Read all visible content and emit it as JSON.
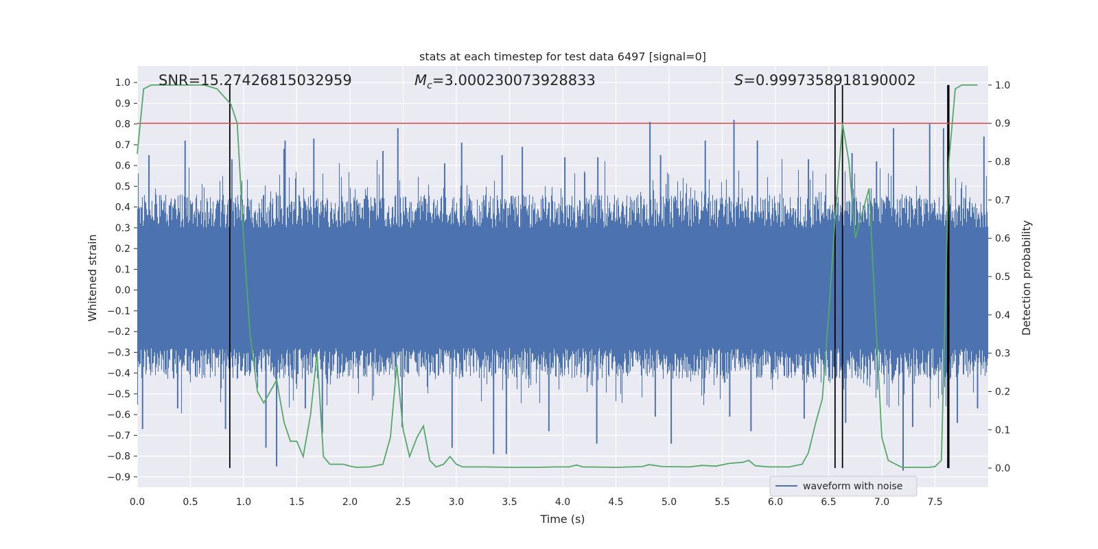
{
  "chart_data": {
    "type": "line",
    "title": "stats at each timestep for test data 6497 [signal=0]",
    "xlabel": "Time (s)",
    "ylabel_left": "Whitened strain",
    "ylabel_right": "Detection probability",
    "xlim": [
      0.0,
      8.0
    ],
    "ylim_left": [
      -0.95,
      1.08
    ],
    "ylim_right": [
      -0.05,
      1.05
    ],
    "x_ticks": [
      "0.0",
      "0.5",
      "1.0",
      "1.5",
      "2.0",
      "2.5",
      "3.0",
      "3.5",
      "4.0",
      "4.5",
      "5.0",
      "5.5",
      "6.0",
      "6.5",
      "7.0",
      "7.5"
    ],
    "y_left_ticks": [
      "-0.9",
      "-0.8",
      "-0.7",
      "-0.6",
      "-0.5",
      "-0.4",
      "-0.3",
      "-0.2",
      "-0.1",
      "0.0",
      "0.1",
      "0.2",
      "0.3",
      "0.4",
      "0.5",
      "0.6",
      "0.7",
      "0.8",
      "0.9",
      "1.0"
    ],
    "y_right_ticks": [
      "0.0",
      "0.1",
      "0.2",
      "0.3",
      "0.4",
      "0.5",
      "0.6",
      "0.7",
      "0.8",
      "0.9",
      "1.0"
    ],
    "annotations": {
      "snr": "SNR=15.27426815032959",
      "mc_symbol": "M",
      "mc_sub": "c",
      "mc_value": "=3.000230073928833",
      "s_symbol": "S",
      "s_value": "=0.9997358918190002"
    },
    "legend": {
      "label": "waveform with noise",
      "placement": "bottom-right"
    },
    "threshold": {
      "axis": "right",
      "value": 0.9
    },
    "detection_vlines": [
      0.87,
      6.56,
      6.63,
      7.62,
      7.63
    ],
    "series": [
      {
        "name": "waveform with noise",
        "axis": "left",
        "style": "noise band",
        "envelope": {
          "upper_typical": 0.45,
          "lower_typical": -0.42,
          "peak_max": 0.82,
          "peak_min": -0.88
        },
        "spikes_up": [
          [
            0.11,
            0.65
          ],
          [
            0.45,
            0.72
          ],
          [
            0.89,
            0.63
          ],
          [
            1.38,
            0.68
          ],
          [
            1.39,
            0.72
          ],
          [
            1.66,
            0.73
          ],
          [
            2.31,
            0.67
          ],
          [
            2.45,
            0.78
          ],
          [
            2.89,
            0.61
          ],
          [
            3.05,
            0.71
          ],
          [
            3.43,
            0.65
          ],
          [
            3.62,
            0.69
          ],
          [
            4.02,
            0.64
          ],
          [
            4.33,
            0.64
          ],
          [
            4.82,
            0.81
          ],
          [
            4.92,
            0.65
          ],
          [
            5.34,
            0.72
          ],
          [
            5.61,
            0.82
          ],
          [
            5.83,
            0.72
          ],
          [
            6.31,
            0.63
          ],
          [
            6.72,
            0.66
          ],
          [
            6.95,
            0.62
          ],
          [
            7.11,
            0.78
          ],
          [
            7.45,
            0.8
          ],
          [
            7.58,
            0.78
          ],
          [
            7.96,
            0.74
          ]
        ],
        "spikes_down": [
          [
            0.05,
            -0.67
          ],
          [
            0.38,
            -0.57
          ],
          [
            0.83,
            -0.67
          ],
          [
            1.21,
            -0.76
          ],
          [
            1.31,
            -0.85
          ],
          [
            1.58,
            -0.57
          ],
          [
            1.74,
            -0.69
          ],
          [
            2.49,
            -0.66
          ],
          [
            2.96,
            -0.76
          ],
          [
            3.35,
            -0.79
          ],
          [
            3.47,
            -0.79
          ],
          [
            3.87,
            -0.68
          ],
          [
            4.32,
            -0.74
          ],
          [
            4.87,
            -0.61
          ],
          [
            5.02,
            -0.74
          ],
          [
            5.57,
            -0.61
          ],
          [
            5.77,
            -0.68
          ],
          [
            6.27,
            -0.62
          ],
          [
            6.66,
            -0.64
          ],
          [
            7.2,
            -0.87
          ],
          [
            7.29,
            -0.66
          ],
          [
            7.71,
            -0.64
          ],
          [
            7.9,
            -0.57
          ]
        ]
      },
      {
        "name": "",
        "axis": "right",
        "style": "line",
        "points": [
          [
            0.0,
            0.82
          ],
          [
            0.06,
            0.99
          ],
          [
            0.13,
            1.0
          ],
          [
            0.25,
            1.0
          ],
          [
            0.5,
            1.0
          ],
          [
            0.63,
            1.0
          ],
          [
            0.75,
            0.99
          ],
          [
            0.88,
            0.95
          ],
          [
            0.94,
            0.9
          ],
          [
            1.0,
            0.6
          ],
          [
            1.06,
            0.35
          ],
          [
            1.13,
            0.2
          ],
          [
            1.19,
            0.17
          ],
          [
            1.25,
            0.2
          ],
          [
            1.31,
            0.23
          ],
          [
            1.38,
            0.12
          ],
          [
            1.44,
            0.07
          ],
          [
            1.5,
            0.07
          ],
          [
            1.56,
            0.03
          ],
          [
            1.63,
            0.14
          ],
          [
            1.69,
            0.3
          ],
          [
            1.75,
            0.03
          ],
          [
            1.81,
            0.01
          ],
          [
            1.88,
            0.01
          ],
          [
            1.94,
            0.01
          ],
          [
            2.0,
            0.005
          ],
          [
            2.06,
            0.002
          ],
          [
            2.19,
            0.003
          ],
          [
            2.31,
            0.01
          ],
          [
            2.38,
            0.08
          ],
          [
            2.44,
            0.27
          ],
          [
            2.5,
            0.1
          ],
          [
            2.56,
            0.03
          ],
          [
            2.63,
            0.08
          ],
          [
            2.69,
            0.11
          ],
          [
            2.75,
            0.02
          ],
          [
            2.81,
            0.003
          ],
          [
            2.88,
            0.01
          ],
          [
            2.94,
            0.03
          ],
          [
            3.0,
            0.01
          ],
          [
            3.06,
            0.003
          ],
          [
            3.25,
            0.003
          ],
          [
            3.5,
            0.002
          ],
          [
            3.75,
            0.002
          ],
          [
            3.94,
            0.003
          ],
          [
            4.06,
            0.003
          ],
          [
            4.13,
            0.008
          ],
          [
            4.19,
            0.003
          ],
          [
            4.5,
            0.002
          ],
          [
            4.75,
            0.004
          ],
          [
            4.81,
            0.009
          ],
          [
            4.94,
            0.004
          ],
          [
            5.19,
            0.003
          ],
          [
            5.31,
            0.007
          ],
          [
            5.44,
            0.005
          ],
          [
            5.56,
            0.012
          ],
          [
            5.69,
            0.015
          ],
          [
            5.75,
            0.02
          ],
          [
            5.81,
            0.006
          ],
          [
            5.94,
            0.003
          ],
          [
            6.13,
            0.003
          ],
          [
            6.25,
            0.01
          ],
          [
            6.31,
            0.04
          ],
          [
            6.38,
            0.12
          ],
          [
            6.44,
            0.18
          ],
          [
            6.5,
            0.4
          ],
          [
            6.56,
            0.65
          ],
          [
            6.63,
            0.9
          ],
          [
            6.69,
            0.8
          ],
          [
            6.75,
            0.6
          ],
          [
            6.81,
            0.66
          ],
          [
            6.88,
            0.73
          ],
          [
            6.94,
            0.4
          ],
          [
            7.0,
            0.08
          ],
          [
            7.06,
            0.02
          ],
          [
            7.13,
            0.01
          ],
          [
            7.19,
            0.002
          ],
          [
            7.31,
            0.002
          ],
          [
            7.44,
            0.002
          ],
          [
            7.5,
            0.004
          ],
          [
            7.56,
            0.02
          ],
          [
            7.63,
            0.8
          ],
          [
            7.69,
            0.99
          ],
          [
            7.75,
            1.0
          ],
          [
            7.9,
            1.0
          ]
        ]
      }
    ],
    "colors": {
      "waveform": "#4c72b0",
      "probability": "#55a868",
      "threshold": "#c44e52",
      "vlines": "#000000",
      "plot_bg": "#eaeaf2",
      "grid": "#ffffff"
    }
  }
}
